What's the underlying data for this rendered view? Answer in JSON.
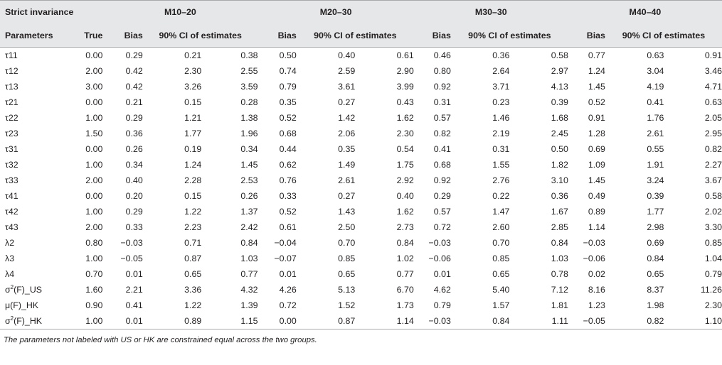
{
  "table": {
    "title": "Strict invariance",
    "groups": [
      "M10–20",
      "M20–30",
      "M30–30",
      "M40–40"
    ],
    "headers": {
      "param": "Parameters",
      "true": "True",
      "bias": "Bias",
      "ci": "90% CI of estimates"
    },
    "rows": [
      {
        "p": "τ11",
        "t": "0.00",
        "v": [
          "0.29",
          "0.21",
          "0.38",
          "0.50",
          "0.40",
          "0.61",
          "0.46",
          "0.36",
          "0.58",
          "0.77",
          "0.63",
          "0.91"
        ]
      },
      {
        "p": "τ12",
        "t": "2.00",
        "v": [
          "0.42",
          "2.30",
          "2.55",
          "0.74",
          "2.59",
          "2.90",
          "0.80",
          "2.64",
          "2.97",
          "1.24",
          "3.04",
          "3.46"
        ]
      },
      {
        "p": "τ13",
        "t": "3.00",
        "v": [
          "0.42",
          "3.26",
          "3.59",
          "0.79",
          "3.61",
          "3.99",
          "0.92",
          "3.71",
          "4.13",
          "1.45",
          "4.19",
          "4.71"
        ]
      },
      {
        "p": "τ21",
        "t": "0.00",
        "v": [
          "0.21",
          "0.15",
          "0.28",
          "0.35",
          "0.27",
          "0.43",
          "0.31",
          "0.23",
          "0.39",
          "0.52",
          "0.41",
          "0.63"
        ]
      },
      {
        "p": "τ22",
        "t": "1.00",
        "v": [
          "0.29",
          "1.21",
          "1.38",
          "0.52",
          "1.42",
          "1.62",
          "0.57",
          "1.46",
          "1.68",
          "0.91",
          "1.76",
          "2.05"
        ]
      },
      {
        "p": "τ23",
        "t": "1.50",
        "v": [
          "0.36",
          "1.77",
          "1.96",
          "0.68",
          "2.06",
          "2.30",
          "0.82",
          "2.19",
          "2.45",
          "1.28",
          "2.61",
          "2.95"
        ]
      },
      {
        "p": "τ31",
        "t": "0.00",
        "v": [
          "0.26",
          "0.19",
          "0.34",
          "0.44",
          "0.35",
          "0.54",
          "0.41",
          "0.31",
          "0.50",
          "0.69",
          "0.55",
          "0.82"
        ]
      },
      {
        "p": "τ32",
        "t": "1.00",
        "v": [
          "0.34",
          "1.24",
          "1.45",
          "0.62",
          "1.49",
          "1.75",
          "0.68",
          "1.55",
          "1.82",
          "1.09",
          "1.91",
          "2.27"
        ]
      },
      {
        "p": "τ33",
        "t": "2.00",
        "v": [
          "0.40",
          "2.28",
          "2.53",
          "0.76",
          "2.61",
          "2.92",
          "0.92",
          "2.76",
          "3.10",
          "1.45",
          "3.24",
          "3.67"
        ]
      },
      {
        "p": "τ41",
        "t": "0.00",
        "v": [
          "0.20",
          "0.15",
          "0.26",
          "0.33",
          "0.27",
          "0.40",
          "0.29",
          "0.22",
          "0.36",
          "0.49",
          "0.39",
          "0.58"
        ]
      },
      {
        "p": "τ42",
        "t": "1.00",
        "v": [
          "0.29",
          "1.22",
          "1.37",
          "0.52",
          "1.43",
          "1.62",
          "0.57",
          "1.47",
          "1.67",
          "0.89",
          "1.77",
          "2.02"
        ]
      },
      {
        "p": "τ43",
        "t": "2.00",
        "v": [
          "0.33",
          "2.23",
          "2.42",
          "0.61",
          "2.50",
          "2.73",
          "0.72",
          "2.60",
          "2.85",
          "1.14",
          "2.98",
          "3.30"
        ]
      },
      {
        "p": "λ2",
        "t": "0.80",
        "v": [
          "−0.03",
          "0.71",
          "0.84",
          "−0.04",
          "0.70",
          "0.84",
          "−0.03",
          "0.70",
          "0.84",
          "−0.03",
          "0.69",
          "0.85"
        ]
      },
      {
        "p": "λ3",
        "t": "1.00",
        "v": [
          "−0.05",
          "0.87",
          "1.03",
          "−0.07",
          "0.85",
          "1.02",
          "−0.06",
          "0.85",
          "1.03",
          "−0.06",
          "0.84",
          "1.04"
        ]
      },
      {
        "p": "λ4",
        "t": "0.70",
        "v": [
          "0.01",
          "0.65",
          "0.77",
          "0.01",
          "0.65",
          "0.77",
          "0.01",
          "0.65",
          "0.78",
          "0.02",
          "0.65",
          "0.79"
        ]
      },
      {
        "p": "σ2(F)_US",
        "pre": "σ",
        "sup": "2",
        "post": "(F)_US",
        "t": "1.60",
        "v": [
          "2.21",
          "3.36",
          "4.32",
          "4.26",
          "5.13",
          "6.70",
          "4.62",
          "5.40",
          "7.12",
          "8.16",
          "8.37",
          "11.26"
        ]
      },
      {
        "p": "μ(F)_HK",
        "t": "0.90",
        "v": [
          "0.41",
          "1.22",
          "1.39",
          "0.72",
          "1.52",
          "1.73",
          "0.79",
          "1.57",
          "1.81",
          "1.23",
          "1.98",
          "2.30"
        ]
      },
      {
        "p": "σ2(F)_HK",
        "pre": "σ",
        "sup": "2",
        "post": "(F)_HK",
        "t": "1.00",
        "v": [
          "0.01",
          "0.89",
          "1.15",
          "0.00",
          "0.87",
          "1.14",
          "−0.03",
          "0.84",
          "1.11",
          "−0.05",
          "0.82",
          "1.10"
        ]
      }
    ],
    "note": "The parameters not labeled with US or HK are constrained equal across the two groups."
  }
}
